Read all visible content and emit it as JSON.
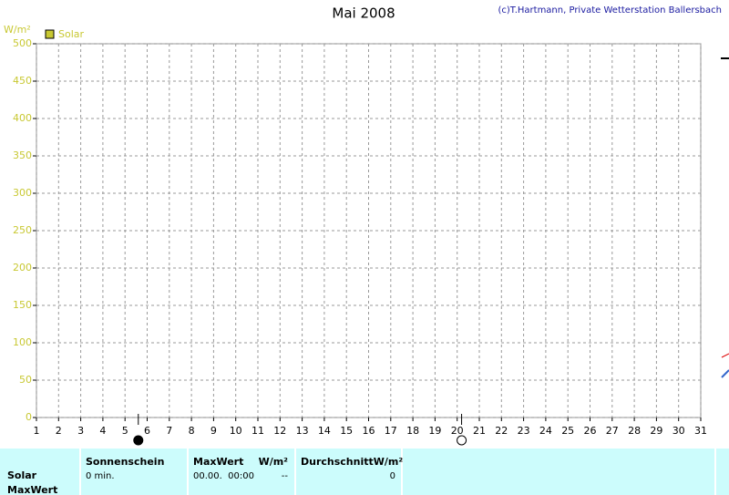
{
  "chart_data": {
    "type": "line",
    "title": "Mai 2008",
    "credit": "(c)T.Hartmann, Private Wetterstation Ballersbach",
    "y_label": "W/m²",
    "series": [
      {
        "name": "Solar",
        "color": "#c8c832"
      }
    ],
    "xlim": [
      1,
      31
    ],
    "xticks": [
      1,
      2,
      3,
      4,
      5,
      6,
      7,
      8,
      9,
      10,
      11,
      12,
      13,
      14,
      15,
      16,
      17,
      18,
      19,
      20,
      21,
      22,
      23,
      24,
      25,
      26,
      27,
      28,
      29,
      30,
      31
    ],
    "ylim": [
      0,
      500
    ],
    "yticks": [
      0,
      50,
      100,
      150,
      200,
      250,
      300,
      350,
      400,
      450,
      500
    ],
    "grid": true,
    "moon_phases": {
      "new_moon": 5.6,
      "full_moon": 20.2
    }
  },
  "summary": {
    "row_labels": [
      "Solar",
      "MaxWert"
    ],
    "sunshine": {
      "header": "Sonnenschein",
      "value": "0 min."
    },
    "max": {
      "header": "MaxWert",
      "unit": "W/m²",
      "time": "00.00.  00:00",
      "value": "--"
    },
    "average": {
      "header": "DurchschnittW/m²",
      "value": "0"
    }
  }
}
